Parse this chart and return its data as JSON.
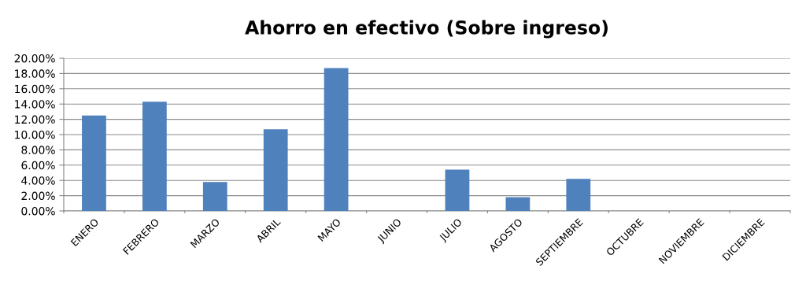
{
  "chart_data": {
    "type": "bar",
    "title": "Ahorro en efectivo (Sobre ingreso)",
    "categories": [
      "ENERO",
      "FEBRERO",
      "MARZO",
      "ABRIL",
      "MAYO",
      "JUNIO",
      "JULIO",
      "AGOSTO",
      "SEPTIEMBRE",
      "OCTUBRE",
      "NOVIEMBRE",
      "DICIEMBRE"
    ],
    "values": [
      12.5,
      14.3,
      3.8,
      10.7,
      18.7,
      null,
      5.4,
      1.8,
      4.2,
      null,
      null,
      null
    ],
    "color": "#4f81bd",
    "ylim": [
      0,
      20
    ],
    "yticks": [
      {
        "value": 0,
        "label": "0.00%"
      },
      {
        "value": 2,
        "label": "2.00%"
      },
      {
        "value": 4,
        "label": "4.00%"
      },
      {
        "value": 6,
        "label": "6.00%"
      },
      {
        "value": 8,
        "label": "8.00%"
      },
      {
        "value": 10,
        "label": "10.00%"
      },
      {
        "value": 12,
        "label": "12.00%"
      },
      {
        "value": 14,
        "label": "14.00%"
      },
      {
        "value": 16,
        "label": "16.00%"
      },
      {
        "value": 18,
        "label": "18.00%"
      },
      {
        "value": 20,
        "label": "20.00%"
      }
    ],
    "grid": "y"
  }
}
